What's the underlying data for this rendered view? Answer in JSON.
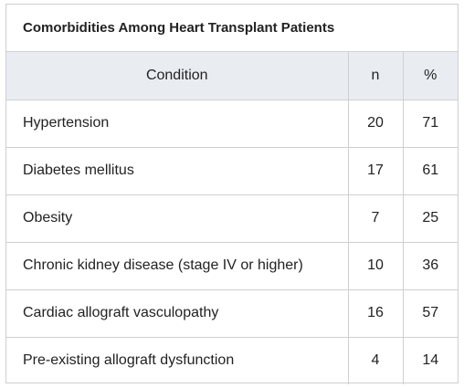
{
  "table": {
    "caption": "Comorbidities Among Heart Transplant Patients",
    "headers": {
      "condition": "Condition",
      "n": "n",
      "percent": "%"
    },
    "rows": [
      {
        "condition": "Hypertension",
        "n": "20",
        "percent": "71"
      },
      {
        "condition": "Diabetes mellitus",
        "n": "17",
        "percent": "61"
      },
      {
        "condition": "Obesity",
        "n": "7",
        "percent": "25"
      },
      {
        "condition": "Chronic kidney disease (stage IV or higher)",
        "n": "10",
        "percent": "36"
      },
      {
        "condition": "Cardiac allograft vasculopathy",
        "n": "16",
        "percent": "57"
      },
      {
        "condition": "Pre-existing allograft dysfunction",
        "n": "4",
        "percent": "14"
      }
    ]
  }
}
